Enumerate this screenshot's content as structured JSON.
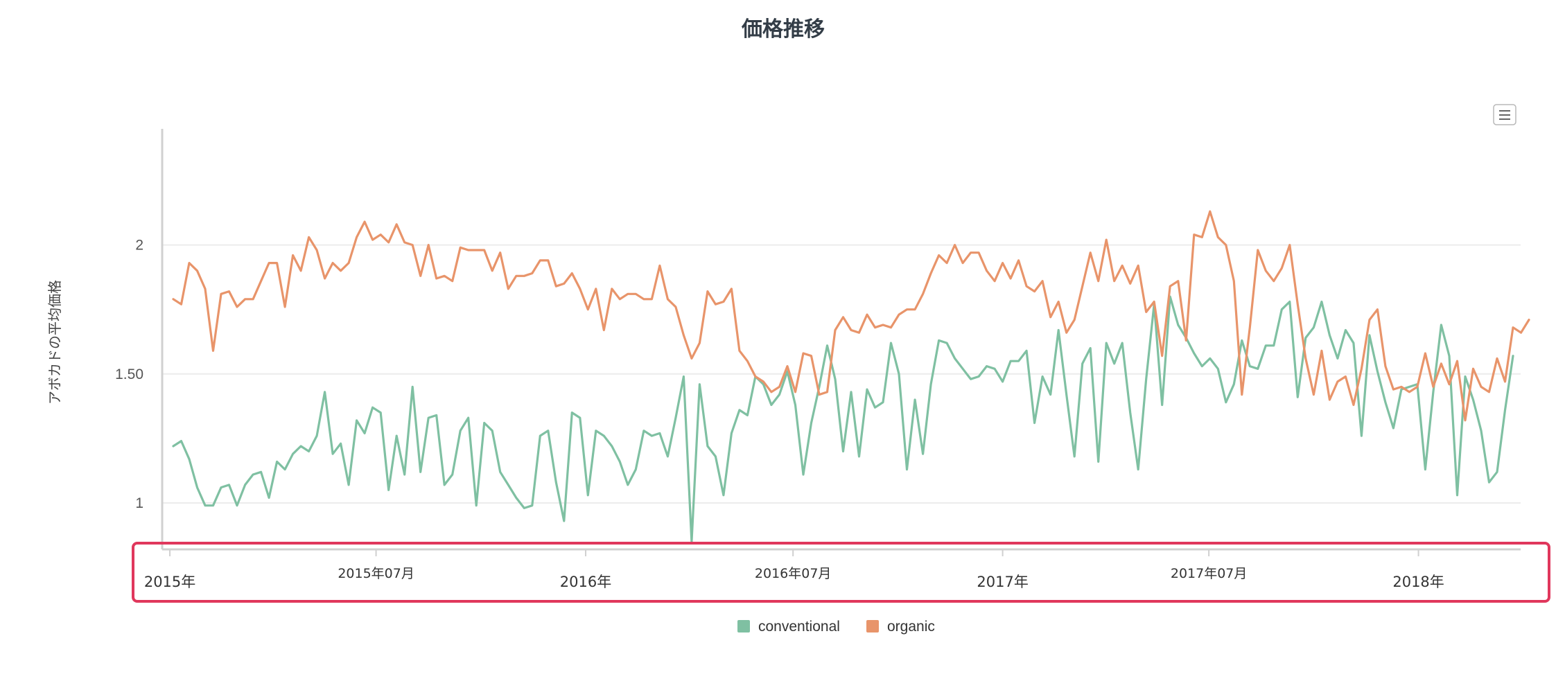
{
  "colors": {
    "conventional": "#7fc0a2",
    "organic": "#e8946a",
    "highlight": "#e0375c",
    "axis": "#d0d0d0",
    "grid": "#ececec"
  },
  "menu": {
    "icon": "hamburger-menu-icon"
  },
  "chart_data": {
    "type": "line",
    "title": "価格推移",
    "ylabel": "アボカドの平均価格",
    "xlabel": "",
    "ylim": [
      0.82,
      2.45
    ],
    "yticks": [
      1,
      1.5,
      2
    ],
    "ytick_labels": [
      "1",
      "1.50",
      "2"
    ],
    "xlim": [
      "2015-01-04",
      "2018-03-25"
    ],
    "xticks": [
      {
        "date": "2015-01-01",
        "label": "2015年",
        "major": true
      },
      {
        "date": "2015-07-01",
        "label": "2015年07月",
        "major": false
      },
      {
        "date": "2016-01-01",
        "label": "2016年",
        "major": true
      },
      {
        "date": "2016-07-01",
        "label": "2016年07月",
        "major": false
      },
      {
        "date": "2017-01-01",
        "label": "2017年",
        "major": true
      },
      {
        "date": "2017-07-01",
        "label": "2017年07月",
        "major": false
      },
      {
        "date": "2018-01-01",
        "label": "2018年",
        "major": true
      }
    ],
    "x_start": "2015-01-04",
    "x_step_days": 7,
    "legend_position": "bottom-center",
    "grid": true,
    "series": [
      {
        "name": "conventional",
        "values": [
          1.22,
          1.24,
          1.17,
          1.06,
          0.99,
          0.99,
          1.06,
          1.07,
          0.99,
          1.07,
          1.11,
          1.12,
          1.02,
          1.16,
          1.13,
          1.19,
          1.22,
          1.2,
          1.26,
          1.43,
          1.19,
          1.23,
          1.07,
          1.32,
          1.27,
          1.37,
          1.35,
          1.05,
          1.26,
          1.11,
          1.45,
          1.12,
          1.33,
          1.34,
          1.07,
          1.11,
          1.28,
          1.33,
          0.99,
          1.31,
          1.28,
          1.12,
          1.07,
          1.02,
          0.98,
          0.99,
          1.26,
          1.28,
          1.08,
          0.93,
          1.35,
          1.33,
          1.03,
          1.28,
          1.26,
          1.22,
          1.16,
          1.07,
          1.13,
          1.28,
          1.26,
          1.27,
          1.18,
          1.33,
          1.49,
          0.85,
          1.46,
          1.22,
          1.18,
          1.03,
          1.27,
          1.36,
          1.34,
          1.49,
          1.46,
          1.38,
          1.42,
          1.51,
          1.38,
          1.11,
          1.31,
          1.45,
          1.61,
          1.48,
          1.2,
          1.43,
          1.18,
          1.44,
          1.37,
          1.39,
          1.62,
          1.5,
          1.13,
          1.4,
          1.19,
          1.46,
          1.63,
          1.62,
          1.56,
          1.52,
          1.48,
          1.49,
          1.53,
          1.52,
          1.47,
          1.55,
          1.55,
          1.59,
          1.31,
          1.49,
          1.42,
          1.67,
          1.42,
          1.18,
          1.54,
          1.6,
          1.16,
          1.62,
          1.54,
          1.62,
          1.35,
          1.13,
          1.48,
          1.77,
          1.38,
          1.8,
          1.69,
          1.64,
          1.58,
          1.53,
          1.56,
          1.52,
          1.39,
          1.46,
          1.63,
          1.53,
          1.52,
          1.61,
          1.61,
          1.75,
          1.78,
          1.41,
          1.64,
          1.68,
          1.78,
          1.65,
          1.56,
          1.67,
          1.62,
          1.26,
          1.65,
          1.51,
          1.39,
          1.29,
          1.44,
          1.45,
          1.46,
          1.13,
          1.43,
          1.69,
          1.57,
          1.03,
          1.49,
          1.4,
          1.28,
          1.08,
          1.12,
          1.36,
          1.57
        ]
      },
      {
        "name": "organic",
        "values": [
          1.79,
          1.77,
          1.93,
          1.9,
          1.83,
          1.59,
          1.81,
          1.82,
          1.76,
          1.79,
          1.79,
          1.86,
          1.93,
          1.93,
          1.76,
          1.96,
          1.9,
          2.03,
          1.98,
          1.87,
          1.93,
          1.9,
          1.93,
          2.03,
          2.09,
          2.02,
          2.04,
          2.01,
          2.08,
          2.01,
          2.0,
          1.88,
          2.0,
          1.87,
          1.88,
          1.86,
          1.99,
          1.98,
          1.98,
          1.98,
          1.9,
          1.97,
          1.83,
          1.88,
          1.88,
          1.89,
          1.94,
          1.94,
          1.84,
          1.85,
          1.89,
          1.83,
          1.75,
          1.83,
          1.67,
          1.83,
          1.79,
          1.81,
          1.81,
          1.79,
          1.79,
          1.92,
          1.79,
          1.76,
          1.65,
          1.56,
          1.62,
          1.82,
          1.77,
          1.78,
          1.83,
          1.59,
          1.55,
          1.49,
          1.47,
          1.43,
          1.45,
          1.53,
          1.43,
          1.58,
          1.57,
          1.42,
          1.43,
          1.67,
          1.72,
          1.67,
          1.66,
          1.73,
          1.68,
          1.69,
          1.68,
          1.73,
          1.75,
          1.75,
          1.81,
          1.89,
          1.96,
          1.93,
          2.0,
          1.93,
          1.97,
          1.97,
          1.9,
          1.86,
          1.93,
          1.87,
          1.94,
          1.84,
          1.82,
          1.86,
          1.72,
          1.78,
          1.66,
          1.71,
          1.84,
          1.97,
          1.86,
          2.02,
          1.86,
          1.92,
          1.85,
          1.92,
          1.74,
          1.78,
          1.57,
          1.84,
          1.86,
          1.63,
          2.04,
          2.03,
          2.13,
          2.03,
          2.0,
          1.86,
          1.42,
          1.68,
          1.98,
          1.9,
          1.86,
          1.91,
          2.0,
          1.77,
          1.56,
          1.42,
          1.59,
          1.4,
          1.47,
          1.49,
          1.38,
          1.52,
          1.71,
          1.75,
          1.53,
          1.44,
          1.45,
          1.43,
          1.45,
          1.58,
          1.45,
          1.54,
          1.46,
          1.55,
          1.32,
          1.52,
          1.45,
          1.43,
          1.56,
          1.47,
          1.68,
          1.66,
          1.71
        ]
      }
    ]
  }
}
